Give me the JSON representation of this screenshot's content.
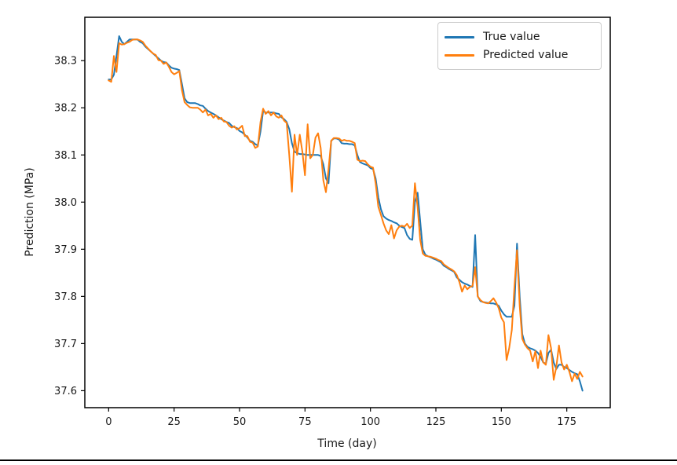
{
  "chart_data": {
    "type": "line",
    "title": "",
    "xlabel": "Time (day)",
    "ylabel": "Prediction (MPa)",
    "xlim": [
      -9.1,
      191.6
    ],
    "ylim": [
      37.564,
      38.392
    ],
    "x_ticks": [
      0,
      25,
      50,
      75,
      100,
      125,
      150,
      175
    ],
    "y_ticks": [
      37.6,
      37.7,
      37.8,
      37.9,
      38.0,
      38.1,
      38.2,
      38.3
    ],
    "y_tick_labels": [
      "37.6",
      "37.7",
      "37.8",
      "37.9",
      "38.0",
      "38.1",
      "38.2",
      "38.3"
    ],
    "grid": false,
    "legend_position": "upper right",
    "x": [
      0,
      1,
      2,
      3,
      4,
      5,
      6,
      7,
      8,
      9,
      10,
      11,
      12,
      13,
      14,
      15,
      16,
      17,
      18,
      19,
      20,
      21,
      22,
      23,
      24,
      25,
      26,
      27,
      28,
      29,
      30,
      31,
      32,
      33,
      34,
      35,
      36,
      37,
      38,
      39,
      40,
      41,
      42,
      43,
      44,
      45,
      46,
      47,
      48,
      49,
      50,
      51,
      52,
      53,
      54,
      55,
      56,
      57,
      58,
      59,
      60,
      61,
      62,
      63,
      64,
      65,
      66,
      67,
      68,
      69,
      70,
      71,
      72,
      73,
      74,
      75,
      76,
      77,
      78,
      79,
      80,
      81,
      82,
      83,
      84,
      85,
      86,
      87,
      88,
      89,
      90,
      91,
      92,
      93,
      94,
      95,
      96,
      97,
      98,
      99,
      100,
      101,
      102,
      103,
      104,
      105,
      106,
      107,
      108,
      109,
      110,
      111,
      112,
      113,
      114,
      115,
      116,
      117,
      118,
      119,
      120,
      121,
      122,
      123,
      124,
      125,
      126,
      127,
      128,
      129,
      130,
      131,
      132,
      133,
      134,
      135,
      136,
      137,
      138,
      139,
      140,
      141,
      142,
      143,
      144,
      145,
      146,
      147,
      148,
      149,
      150,
      151,
      152,
      153,
      154,
      155,
      156,
      157,
      158,
      159,
      160,
      161,
      162,
      163,
      164,
      165,
      166,
      167,
      168,
      169,
      170,
      171,
      172,
      173,
      174,
      175,
      176,
      177,
      178,
      179,
      180,
      181
    ],
    "series": [
      {
        "name": "True value",
        "color": "#1f77b4",
        "values": [
          38.26,
          38.26,
          38.27,
          38.31,
          38.352,
          38.34,
          38.335,
          38.34,
          38.345,
          38.345,
          38.345,
          38.345,
          38.34,
          38.337,
          38.33,
          38.325,
          38.32,
          38.315,
          38.31,
          38.305,
          38.3,
          38.297,
          38.296,
          38.29,
          38.285,
          38.283,
          38.282,
          38.28,
          38.25,
          38.22,
          38.212,
          38.21,
          38.21,
          38.21,
          38.208,
          38.205,
          38.204,
          38.198,
          38.193,
          38.19,
          38.187,
          38.184,
          38.18,
          38.176,
          38.173,
          38.17,
          38.168,
          38.162,
          38.159,
          38.157,
          38.151,
          38.148,
          38.143,
          38.137,
          38.13,
          38.128,
          38.123,
          38.12,
          38.15,
          38.193,
          38.19,
          38.19,
          38.19,
          38.19,
          38.188,
          38.187,
          38.18,
          38.176,
          38.17,
          38.155,
          38.125,
          38.107,
          38.104,
          38.102,
          38.102,
          38.101,
          38.1,
          38.1,
          38.1,
          38.1,
          38.1,
          38.098,
          38.08,
          38.05,
          38.04,
          38.13,
          38.135,
          38.135,
          38.133,
          38.125,
          38.124,
          38.124,
          38.123,
          38.123,
          38.12,
          38.1,
          38.085,
          38.082,
          38.08,
          38.078,
          38.072,
          38.07,
          38.05,
          38.01,
          37.985,
          37.97,
          37.965,
          37.962,
          37.96,
          37.957,
          37.955,
          37.95,
          37.947,
          37.945,
          37.93,
          37.922,
          37.92,
          38.0,
          38.02,
          37.96,
          37.9,
          37.888,
          37.885,
          37.883,
          37.88,
          37.878,
          37.875,
          37.872,
          37.865,
          37.862,
          37.858,
          37.855,
          37.852,
          37.84,
          37.835,
          37.83,
          37.827,
          37.825,
          37.822,
          37.82,
          37.93,
          37.8,
          37.79,
          37.788,
          37.787,
          37.786,
          37.785,
          37.785,
          37.783,
          37.78,
          37.77,
          37.762,
          37.757,
          37.757,
          37.757,
          37.78,
          37.912,
          37.8,
          37.72,
          37.7,
          37.693,
          37.69,
          37.688,
          37.685,
          37.68,
          37.672,
          37.66,
          37.657,
          37.68,
          37.687,
          37.66,
          37.646,
          37.655,
          37.655,
          37.65,
          37.648,
          37.644,
          37.64,
          37.637,
          37.635,
          37.62,
          37.6
        ]
      },
      {
        "name": "Predicted value",
        "color": "#ff7f0e",
        "values": [
          38.258,
          38.255,
          38.31,
          38.276,
          38.337,
          38.334,
          38.335,
          38.338,
          38.34,
          38.344,
          38.345,
          38.345,
          38.343,
          38.34,
          38.332,
          38.326,
          38.32,
          38.315,
          38.312,
          38.301,
          38.3,
          38.293,
          38.296,
          38.287,
          38.276,
          38.271,
          38.274,
          38.278,
          38.237,
          38.212,
          38.206,
          38.201,
          38.2,
          38.2,
          38.2,
          38.196,
          38.19,
          38.196,
          38.184,
          38.187,
          38.179,
          38.184,
          38.176,
          38.179,
          38.171,
          38.17,
          38.162,
          38.158,
          38.161,
          38.154,
          38.157,
          38.162,
          38.14,
          38.14,
          38.128,
          38.126,
          38.115,
          38.118,
          38.17,
          38.198,
          38.187,
          38.193,
          38.184,
          38.19,
          38.182,
          38.179,
          38.184,
          38.173,
          38.168,
          38.1,
          38.022,
          38.143,
          38.1,
          38.143,
          38.107,
          38.057,
          38.165,
          38.093,
          38.1,
          38.137,
          38.146,
          38.115,
          38.046,
          38.021,
          38.07,
          38.13,
          38.136,
          38.136,
          38.135,
          38.13,
          38.132,
          38.13,
          38.13,
          38.128,
          38.125,
          38.09,
          38.087,
          38.088,
          38.087,
          38.08,
          38.075,
          38.073,
          38.04,
          37.99,
          37.973,
          37.955,
          37.94,
          37.932,
          37.951,
          37.923,
          37.94,
          37.948,
          37.95,
          37.948,
          37.954,
          37.945,
          37.95,
          38.04,
          37.99,
          37.92,
          37.891,
          37.886,
          37.885,
          37.884,
          37.882,
          37.88,
          37.877,
          37.875,
          37.868,
          37.864,
          37.86,
          37.857,
          37.853,
          37.845,
          37.83,
          37.81,
          37.823,
          37.815,
          37.82,
          37.822,
          37.862,
          37.8,
          37.792,
          37.788,
          37.786,
          37.785,
          37.79,
          37.796,
          37.787,
          37.775,
          37.755,
          37.745,
          37.665,
          37.69,
          37.729,
          37.82,
          37.898,
          37.78,
          37.71,
          37.698,
          37.69,
          37.685,
          37.662,
          37.684,
          37.648,
          37.685,
          37.66,
          37.655,
          37.718,
          37.69,
          37.623,
          37.65,
          37.696,
          37.66,
          37.645,
          37.655,
          37.64,
          37.62,
          37.636,
          37.625,
          37.64,
          37.63
        ]
      }
    ]
  }
}
